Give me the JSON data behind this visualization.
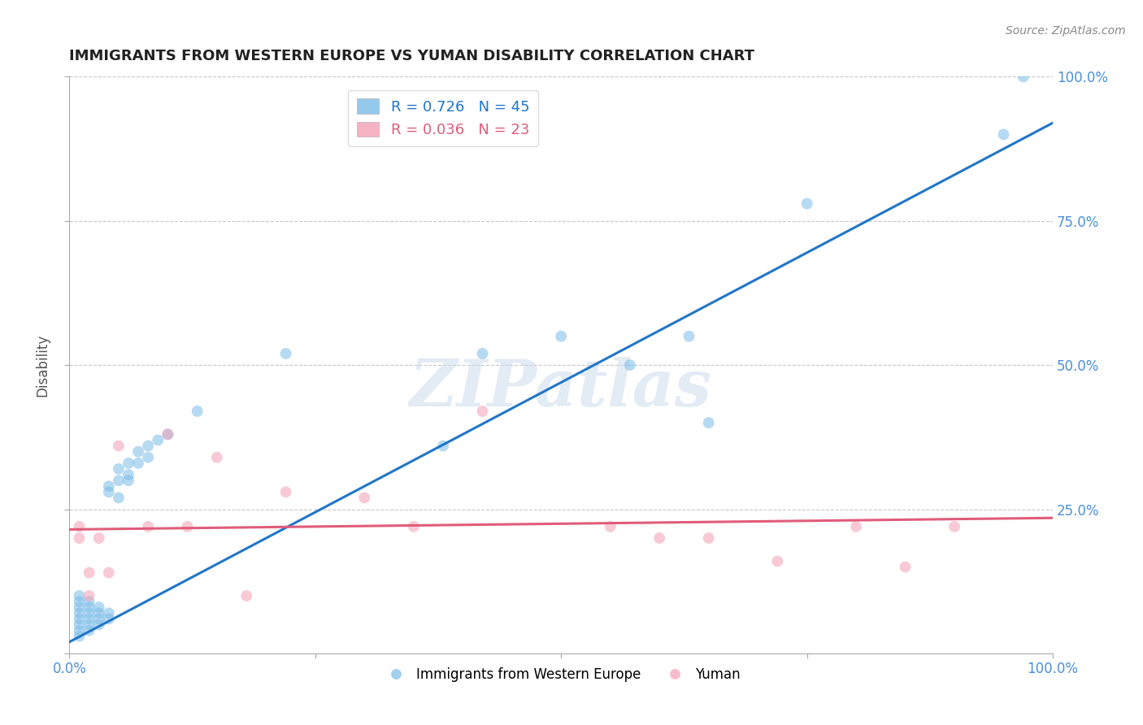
{
  "title": "IMMIGRANTS FROM WESTERN EUROPE VS YUMAN DISABILITY CORRELATION CHART",
  "source": "Source: ZipAtlas.com",
  "ylabel": "Disability",
  "watermark": "ZIPatlas",
  "blue_R": "0.726",
  "blue_N": "45",
  "pink_R": "0.036",
  "pink_N": "23",
  "blue_color": "#7bbce8",
  "pink_color": "#f4a0b5",
  "blue_line_color": "#2176c7",
  "pink_line_color": "#e05c7a",
  "legend_blue_label": "Immigrants from Western Europe",
  "legend_pink_label": "Yuman",
  "xlim": [
    0.0,
    1.0
  ],
  "ylim": [
    0.0,
    1.0
  ],
  "xticks": [
    0.0,
    0.25,
    0.5,
    0.75,
    1.0
  ],
  "yticks": [
    0.0,
    0.25,
    0.5,
    0.75,
    1.0
  ],
  "ytick_labels_right": [
    "",
    "25.0%",
    "50.0%",
    "75.0%",
    "100.0%"
  ],
  "blue_scatter_x": [
    0.01,
    0.01,
    0.01,
    0.01,
    0.01,
    0.01,
    0.01,
    0.01,
    0.02,
    0.02,
    0.02,
    0.02,
    0.02,
    0.02,
    0.03,
    0.03,
    0.03,
    0.03,
    0.04,
    0.04,
    0.04,
    0.04,
    0.05,
    0.05,
    0.05,
    0.06,
    0.06,
    0.06,
    0.07,
    0.07,
    0.08,
    0.08,
    0.09,
    0.1,
    0.13,
    0.22,
    0.38,
    0.42,
    0.5,
    0.57,
    0.63,
    0.65,
    0.75,
    0.95,
    0.97
  ],
  "blue_scatter_y": [
    0.03,
    0.04,
    0.05,
    0.06,
    0.07,
    0.08,
    0.09,
    0.1,
    0.04,
    0.05,
    0.06,
    0.07,
    0.08,
    0.09,
    0.05,
    0.06,
    0.07,
    0.08,
    0.06,
    0.07,
    0.28,
    0.29,
    0.27,
    0.3,
    0.32,
    0.3,
    0.31,
    0.33,
    0.33,
    0.35,
    0.34,
    0.36,
    0.37,
    0.38,
    0.42,
    0.52,
    0.36,
    0.52,
    0.55,
    0.5,
    0.55,
    0.4,
    0.78,
    0.9,
    1.0
  ],
  "pink_scatter_x": [
    0.01,
    0.01,
    0.02,
    0.02,
    0.03,
    0.04,
    0.05,
    0.08,
    0.1,
    0.12,
    0.15,
    0.18,
    0.22,
    0.3,
    0.35,
    0.42,
    0.55,
    0.6,
    0.65,
    0.72,
    0.8,
    0.85,
    0.9
  ],
  "pink_scatter_y": [
    0.2,
    0.22,
    0.1,
    0.14,
    0.2,
    0.14,
    0.36,
    0.22,
    0.38,
    0.22,
    0.34,
    0.1,
    0.28,
    0.27,
    0.22,
    0.42,
    0.22,
    0.2,
    0.2,
    0.16,
    0.22,
    0.15,
    0.22
  ],
  "blue_line_x": [
    0.0,
    1.0
  ],
  "blue_line_y": [
    0.02,
    0.92
  ],
  "pink_line_x": [
    0.0,
    1.0
  ],
  "pink_line_y": [
    0.215,
    0.235
  ],
  "grid_color": "#c8c8c8",
  "bg_color": "#ffffff",
  "title_color": "#222222",
  "axis_label_color": "#555555",
  "tick_color": "#4a90d9"
}
